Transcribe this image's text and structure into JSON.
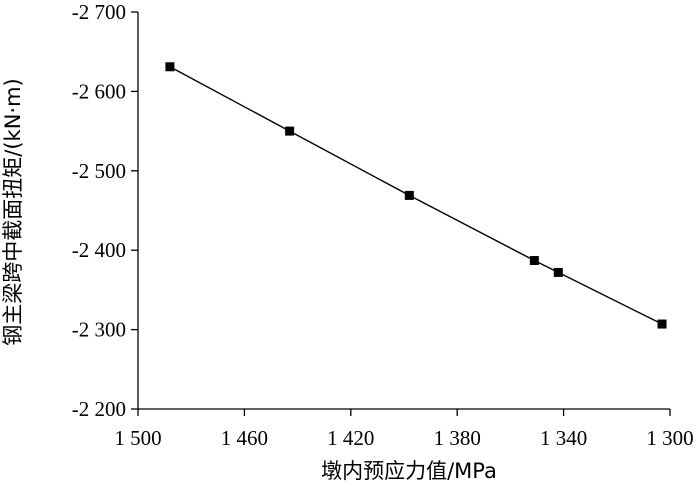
{
  "chart_data": {
    "type": "line",
    "title": "",
    "xlabel": "墩内预应力值/MPa",
    "ylabel": "钢主梁跨中截面扭矩/(kN·m)",
    "xlim": [
      1500,
      1300
    ],
    "ylim": [
      -2200,
      -2700
    ],
    "x_reversed": true,
    "y_reversed": true,
    "x_ticks": [
      1500,
      1460,
      1420,
      1380,
      1340,
      1300
    ],
    "y_ticks": [
      -2200,
      -2300,
      -2400,
      -2500,
      -2600,
      -2700
    ],
    "x_tick_labels": [
      "1 500",
      "1 460",
      "1 420",
      "1 380",
      "1 340",
      "1 300"
    ],
    "y_tick_labels": [
      "-2 200",
      "-2 300",
      "-2 400",
      "-2 500",
      "-2 600",
      "-2 700"
    ],
    "grid": false,
    "legend": "none",
    "series": [
      {
        "marker": "square",
        "color": "#000000",
        "x": [
          1488,
          1443,
          1398,
          1351,
          1342,
          1303
        ],
        "y": [
          -2631,
          -2550,
          -2469,
          -2387,
          -2372,
          -2307
        ]
      }
    ]
  }
}
